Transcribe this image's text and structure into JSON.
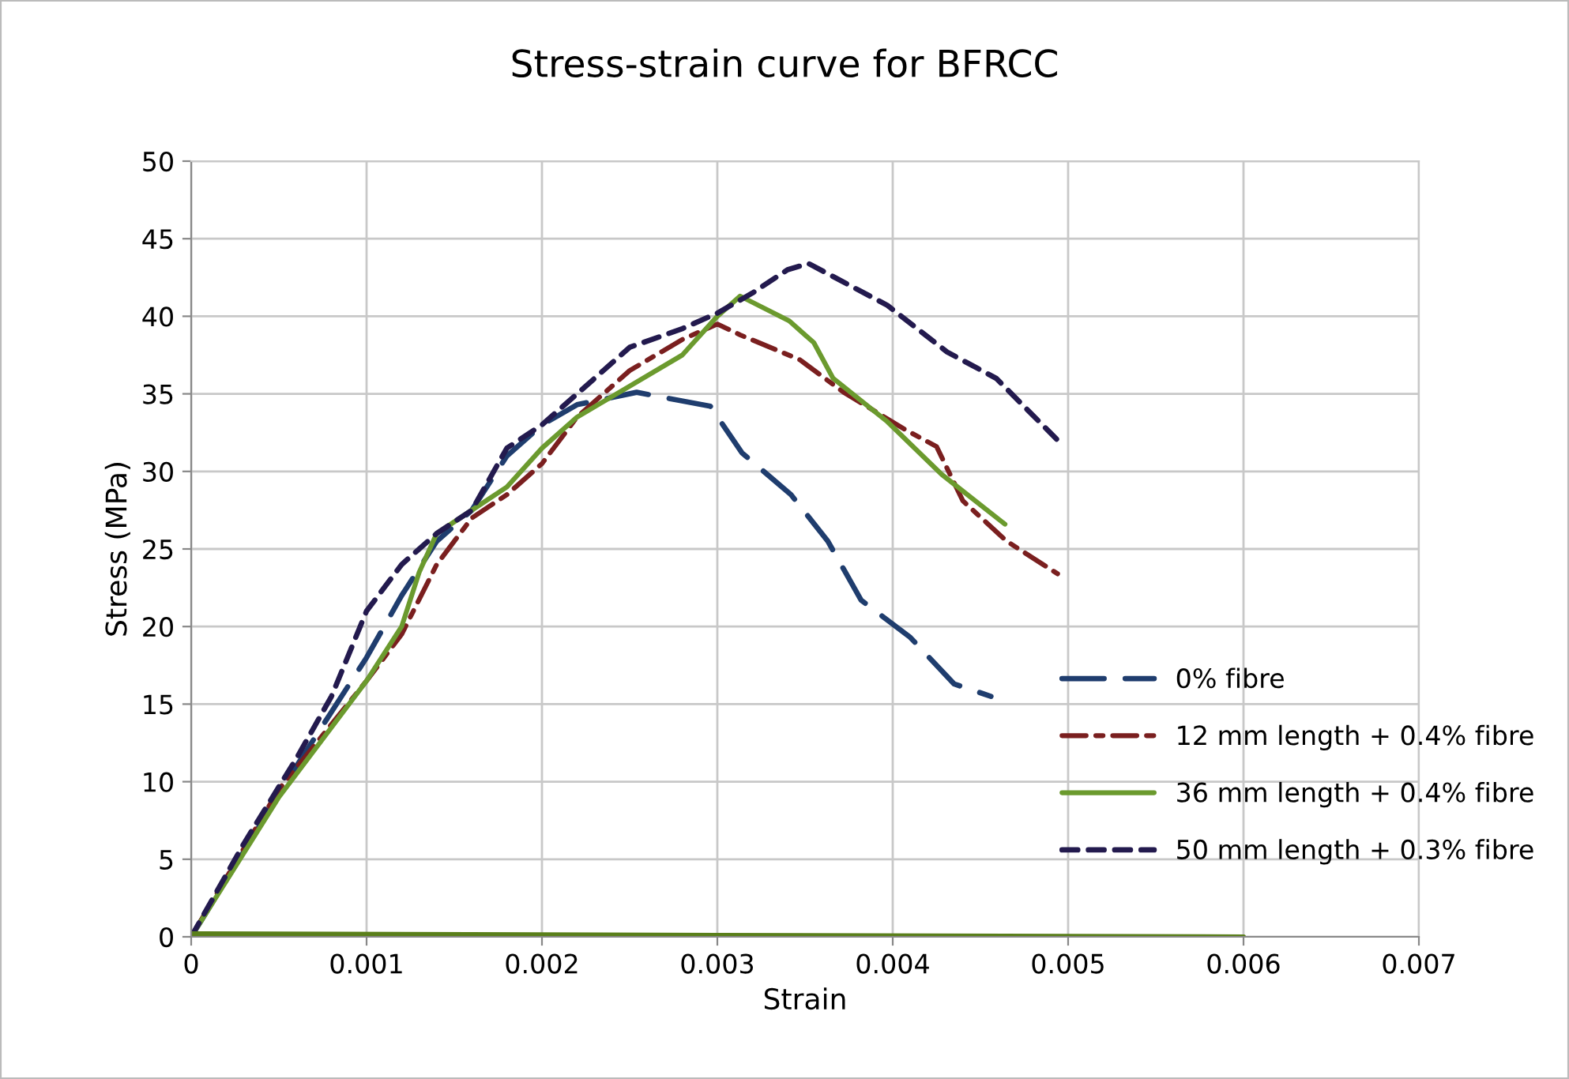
{
  "chart_data": {
    "type": "line",
    "title": "Stress-strain curve for BFRCC",
    "xlabel": "Strain",
    "ylabel": "Stress (MPa)",
    "xlim": [
      0,
      0.007
    ],
    "xticks": [
      0,
      0.001,
      0.002,
      0.003,
      0.004,
      0.005,
      0.006,
      0.007
    ],
    "ylim": [
      0,
      50
    ],
    "yticks": [
      0,
      5,
      10,
      15,
      20,
      25,
      30,
      35,
      40,
      45,
      50
    ],
    "grid": true,
    "legend": "bottom right",
    "marker": "none",
    "series": [
      {
        "name": "0% fibre",
        "color": "#1f3d6e",
        "line_style": "dashed",
        "x": [
          0,
          0.0003,
          0.0006,
          0.0008,
          0.001,
          0.0012,
          0.0014,
          0.0016,
          0.0018,
          0.002,
          0.0022,
          0.00254,
          0.00296,
          0.00314,
          0.00342,
          0.00363,
          0.00382,
          0.0041,
          0.00435,
          0.00456
        ],
        "values": [
          0,
          5.5,
          11,
          14.5,
          18,
          22,
          25.5,
          27.5,
          31,
          33,
          34.3,
          35.1,
          34.2,
          31.2,
          28.5,
          25.5,
          21.7,
          19.3,
          16.3,
          15.5
        ]
      },
      {
        "name": "12 mm length + 0.4% fibre",
        "color": "#7a1f1f",
        "line_style": "dashdot",
        "x": [
          0,
          0.0005,
          0.001,
          0.0012,
          0.0014,
          0.0016,
          0.0018,
          0.002,
          0.0022,
          0.0025,
          0.0028,
          0.003,
          0.00313,
          0.00347,
          0.00372,
          0.00407,
          0.00425,
          0.0044,
          0.00465,
          0.00494
        ],
        "values": [
          0,
          9.5,
          16.5,
          19.5,
          24,
          27,
          28.5,
          30.5,
          33.5,
          36.5,
          38.5,
          39.5,
          38.8,
          37.2,
          35.1,
          32.7,
          31.6,
          28.1,
          25.5,
          23.4
        ]
      },
      {
        "name": "36 mm length + 0.4% fibre",
        "color": "#6b9a2e",
        "line_style": "solid",
        "x": [
          0,
          0.0005,
          0.001,
          0.0012,
          0.0013,
          0.0014,
          0.0016,
          0.0018,
          0.002,
          0.0022,
          0.0025,
          0.0028,
          0.003,
          0.00313,
          0.00341,
          0.00355,
          0.00366,
          0.00397,
          0.00428,
          0.00464
        ],
        "values": [
          0,
          9,
          16.5,
          20,
          23.5,
          26,
          27.5,
          29,
          31.5,
          33.5,
          35.5,
          37.5,
          40,
          41.3,
          39.7,
          38.3,
          36,
          33.2,
          29.8,
          26.6
        ]
      },
      {
        "name": "50 mm length + 0.3% fibre",
        "color": "#231a4e",
        "line_style": "dotted",
        "x": [
          0,
          0.0003,
          0.0006,
          0.0008,
          0.001,
          0.0012,
          0.0014,
          0.0016,
          0.0018,
          0.002,
          0.0022,
          0.0025,
          0.0028,
          0.003,
          0.0032,
          0.0034,
          0.00352,
          0.00397,
          0.00431,
          0.00459,
          0.00495
        ],
        "values": [
          0,
          6,
          11.5,
          15.5,
          21,
          24,
          26,
          27.5,
          31.5,
          33,
          35,
          38,
          39.2,
          40.2,
          41.5,
          43,
          43.4,
          40.7,
          37.7,
          36,
          31.9
        ]
      },
      {
        "color": "#5a7f1a",
        "line_style": "solid",
        "x": [
          0,
          0.003,
          0.006
        ],
        "values": [
          0.2,
          0.1,
          0
        ]
      }
    ]
  }
}
